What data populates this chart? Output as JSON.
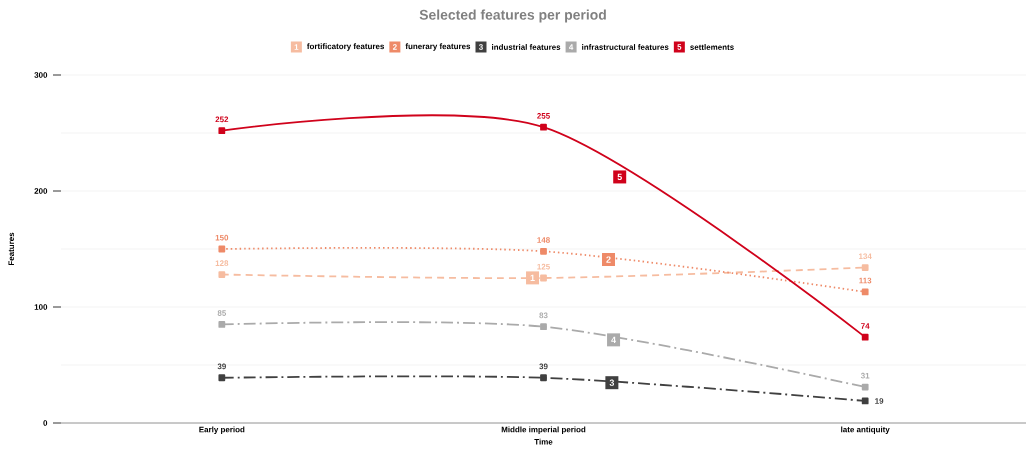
{
  "chart_data": {
    "type": "line",
    "title": "Selected features per period",
    "xlabel": "Time",
    "ylabel": "Features",
    "categories": [
      "Early period",
      "Middle imperial period",
      "late antiquity"
    ],
    "series": [
      {
        "name": "fortificatory features",
        "color": "#f6bca0",
        "line_style": "dashed",
        "values": [
          128,
          125,
          134
        ]
      },
      {
        "name": "funerary features",
        "color": "#ee8a68",
        "line_style": "dotted",
        "values": [
          150,
          148,
          113
        ]
      },
      {
        "name": "industrial features",
        "color": "#404040",
        "line_style": "dashdot",
        "values": [
          39,
          39,
          19
        ]
      },
      {
        "name": "infrastructural features",
        "color": "#aaaaaa",
        "line_style": "dashdot",
        "values": [
          85,
          83,
          31
        ]
      },
      {
        "name": "settlements",
        "color": "#d0021b",
        "line_style": "solid",
        "values": [
          252,
          255,
          74
        ]
      }
    ],
    "ylim": [
      0,
      300
    ],
    "yticks": [
      0,
      100,
      200,
      300
    ],
    "annotations": [
      "1",
      "2",
      "3",
      "4",
      "5"
    ],
    "grid": "y",
    "legend": "top",
    "marker": "square",
    "data_labels": true
  }
}
